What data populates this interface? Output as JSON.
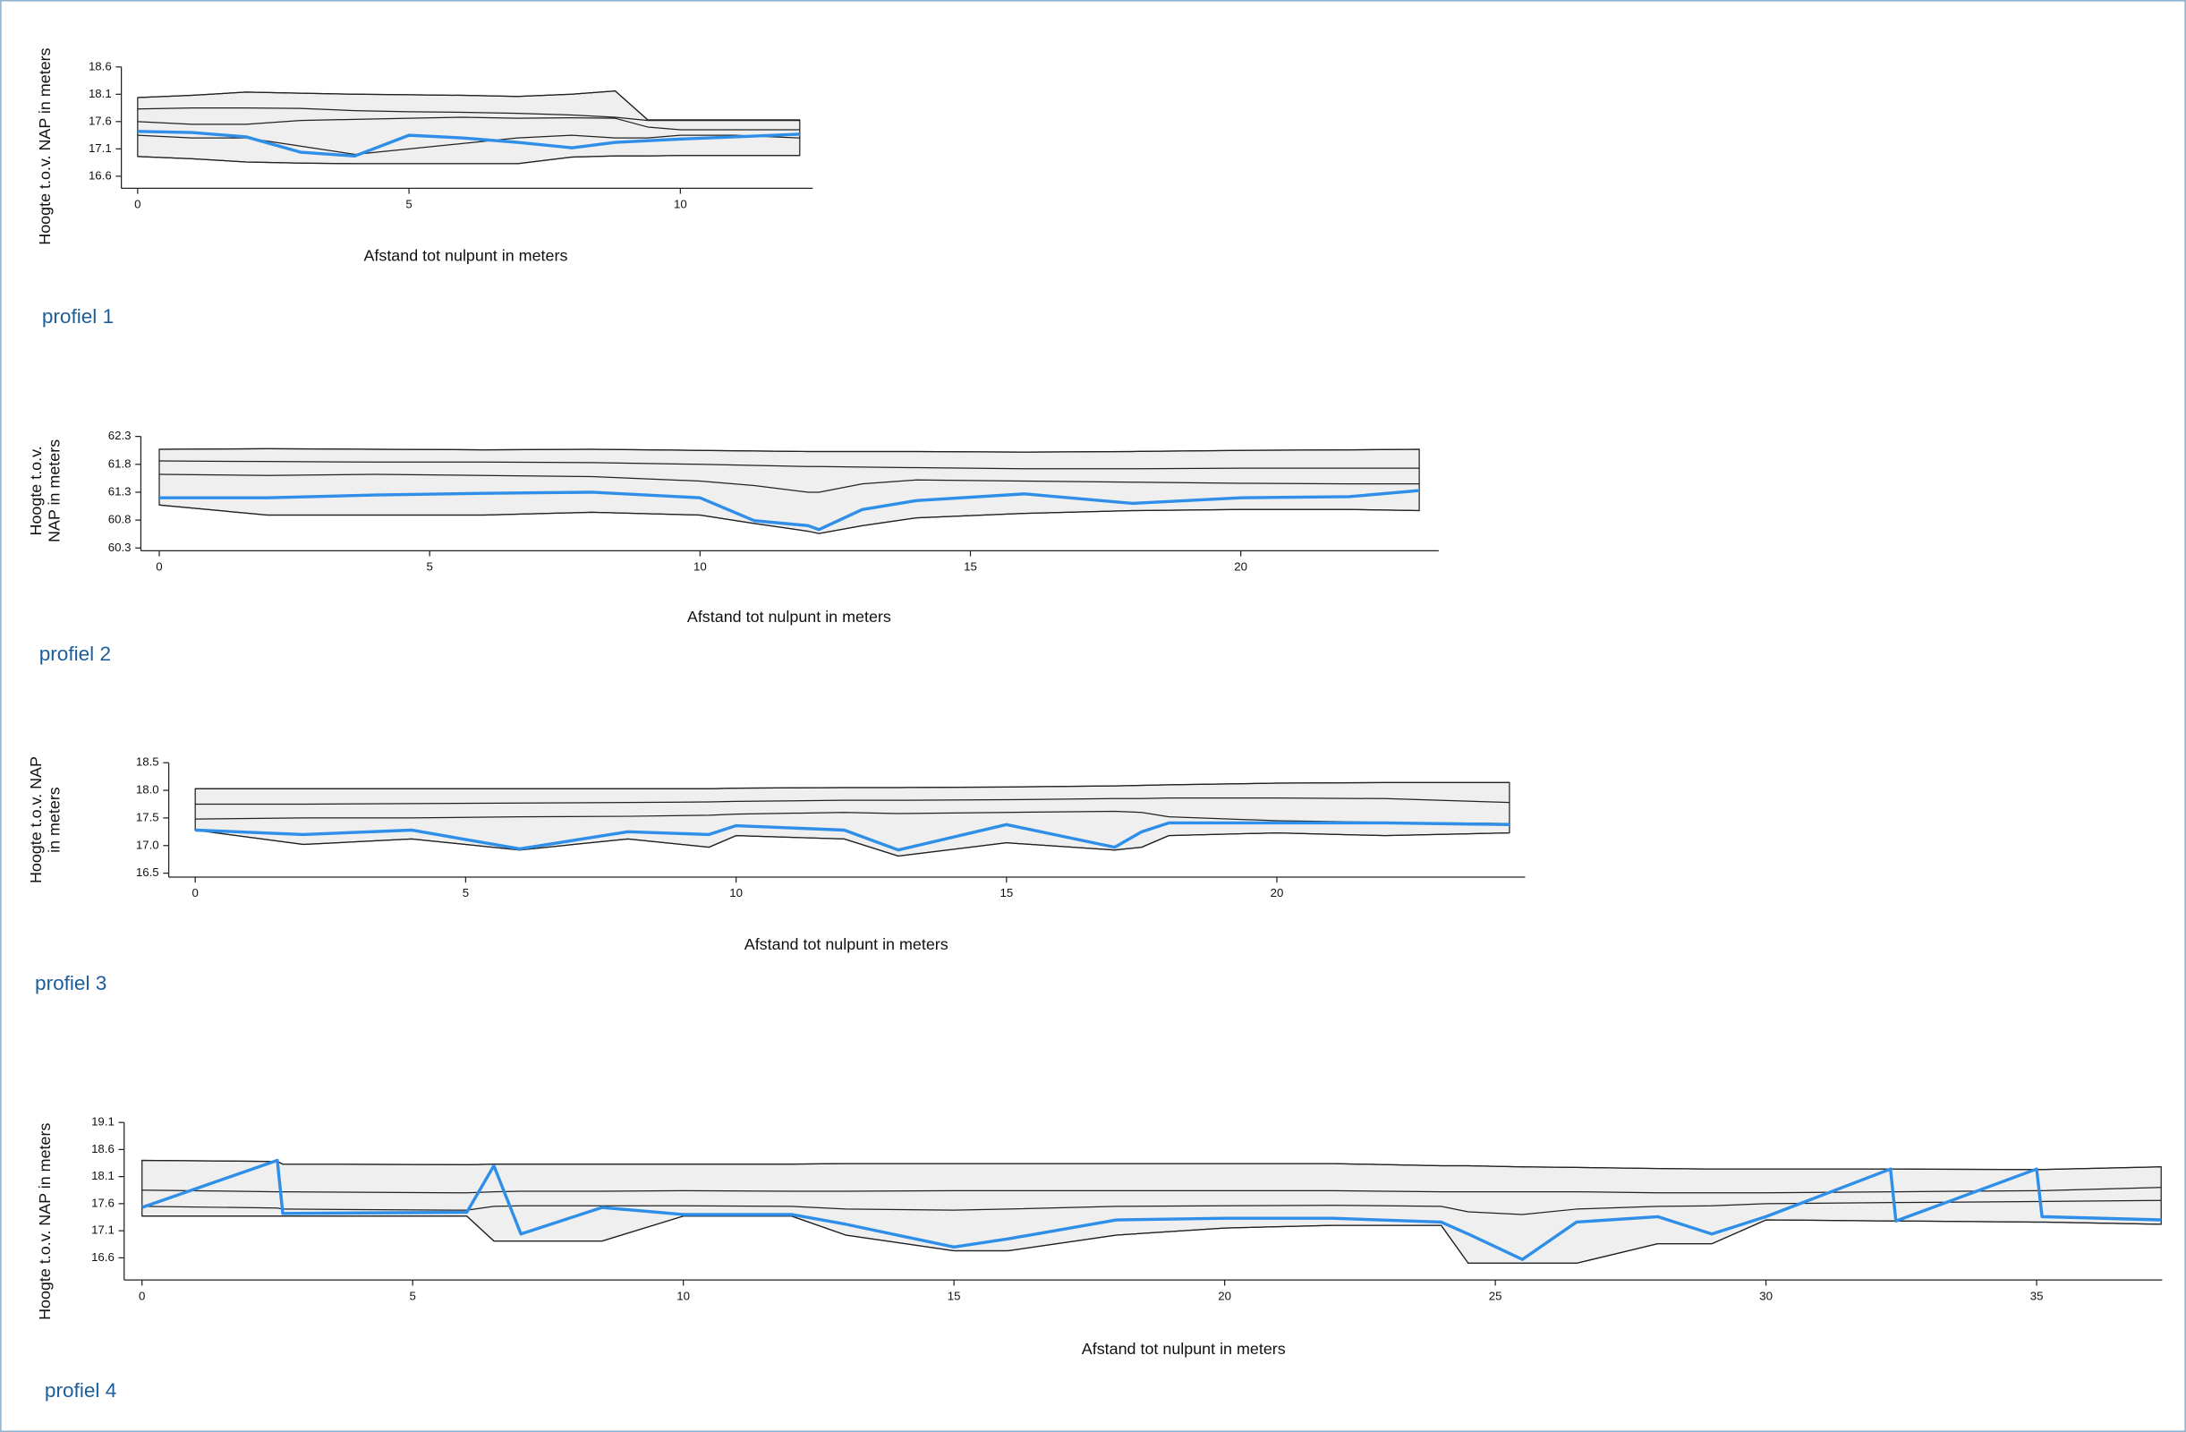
{
  "chart_data": [
    {
      "type": "profile",
      "caption": "profiel 1",
      "ylabel": [
        "Hoogte t.o.v. NAP in meters"
      ],
      "xlabel": "Afstand tot nulpunt in meters",
      "x": [
        0,
        1,
        2,
        3,
        4,
        5,
        6,
        7,
        8,
        8.8,
        9.4,
        10,
        11,
        12.2
      ],
      "xlim": [
        -0.3,
        12.44
      ],
      "xticks": [
        0,
        5,
        10
      ],
      "ylim": [
        16.38,
        18.6
      ],
      "yticks": [
        16.6,
        17.1,
        17.6,
        18.1,
        18.6
      ],
      "fill": "#efefef",
      "series": [
        {
          "color": "#222222",
          "values": [
            18.04,
            18.08,
            18.14,
            18.12,
            18.1,
            18.09,
            18.08,
            18.06,
            18.1,
            18.16,
            17.63,
            17.63,
            17.63,
            17.63
          ]
        },
        {
          "color": "#222222",
          "values": [
            16.96,
            16.92,
            16.86,
            16.84,
            16.83,
            16.83,
            16.83,
            16.83,
            16.95,
            16.97,
            16.97,
            16.98,
            16.98,
            16.98
          ]
        },
        {
          "color": "#222222",
          "values": [
            17.83,
            17.85,
            17.85,
            17.84,
            17.8,
            17.78,
            17.77,
            17.75,
            17.72,
            17.68,
            17.62,
            17.62,
            17.62,
            17.62
          ]
        },
        {
          "color": "#222222",
          "values": [
            17.6,
            17.55,
            17.55,
            17.62,
            17.64,
            17.66,
            17.68,
            17.66,
            17.67,
            17.66,
            17.5,
            17.45,
            17.45,
            17.45
          ]
        },
        {
          "color": "#222222",
          "values": [
            17.35,
            17.3,
            17.3,
            17.15,
            17.0,
            17.1,
            17.2,
            17.3,
            17.35,
            17.3,
            17.3,
            17.35,
            17.35,
            17.3
          ]
        },
        {
          "color": "#2f8fe8",
          "values": [
            17.42,
            17.4,
            17.32,
            17.04,
            16.97,
            17.35,
            17.3,
            17.22,
            17.12,
            17.22,
            17.25,
            17.28,
            17.32,
            17.37
          ]
        }
      ]
    },
    {
      "type": "profile",
      "caption": "profiel 2",
      "ylabel": [
        "Hoogte t.o.v.",
        "NAP in meters"
      ],
      "xlabel": "Afstand tot nulpunt in meters",
      "x": [
        0,
        2,
        4,
        6,
        8,
        10,
        11,
        12,
        12.2,
        13,
        14,
        16,
        18,
        20,
        22,
        23.3
      ],
      "xlim": [
        -0.34,
        23.66
      ],
      "xticks": [
        0,
        5,
        10,
        15,
        20
      ],
      "ylim": [
        60.25,
        62.3
      ],
      "yticks": [
        60.3,
        60.8,
        61.3,
        61.8,
        62.3
      ],
      "fill": "#efefef",
      "series": [
        {
          "color": "#222222",
          "values": [
            62.07,
            62.08,
            62.07,
            62.06,
            62.07,
            62.05,
            62.04,
            62.03,
            62.03,
            62.03,
            62.03,
            62.02,
            62.03,
            62.05,
            62.06,
            62.07
          ]
        },
        {
          "color": "#222222",
          "values": [
            61.07,
            60.89,
            60.89,
            60.89,
            60.94,
            60.89,
            60.74,
            60.6,
            60.56,
            60.7,
            60.84,
            60.92,
            60.97,
            60.99,
            60.99,
            60.97
          ]
        },
        {
          "color": "#222222",
          "values": [
            61.86,
            61.85,
            61.84,
            61.84,
            61.83,
            61.8,
            61.78,
            61.76,
            61.76,
            61.75,
            61.74,
            61.72,
            61.72,
            61.73,
            61.73,
            61.73
          ]
        },
        {
          "color": "#222222",
          "values": [
            61.62,
            61.6,
            61.62,
            61.6,
            61.58,
            61.5,
            61.42,
            61.3,
            61.3,
            61.45,
            61.52,
            61.5,
            61.48,
            61.46,
            61.45,
            61.45
          ]
        },
        {
          "color": "#2f8fe8",
          "values": [
            61.2,
            61.2,
            61.25,
            61.28,
            61.3,
            61.2,
            60.79,
            60.7,
            60.63,
            60.99,
            61.15,
            61.27,
            61.1,
            61.2,
            61.22,
            61.33
          ]
        }
      ]
    },
    {
      "type": "profile",
      "caption": "profiel 3",
      "ylabel": [
        "Hoogte t.o.v. NAP",
        "in meters"
      ],
      "xlabel": "Afstand tot nulpunt in meters",
      "x": [
        0,
        2,
        4,
        6,
        8,
        9.5,
        10,
        12,
        13,
        15,
        17,
        17.5,
        18,
        20,
        22,
        24.3
      ],
      "xlim": [
        -0.49,
        24.59
      ],
      "xticks": [
        0,
        5,
        10,
        15,
        20
      ],
      "ylim": [
        16.43,
        18.5
      ],
      "yticks": [
        16.5,
        {
          "value": 17,
          "label": "17.0"
        },
        17.5,
        {
          "value": 18,
          "label": "18.0"
        },
        18.5
      ],
      "fill": "#efefef",
      "series": [
        {
          "color": "#222222",
          "values": [
            18.03,
            18.03,
            18.03,
            18.03,
            18.03,
            18.03,
            18.04,
            18.05,
            18.05,
            18.06,
            18.08,
            18.09,
            18.1,
            18.13,
            18.14,
            18.14
          ]
        },
        {
          "color": "#222222",
          "values": [
            17.28,
            17.02,
            17.12,
            16.92,
            17.12,
            16.97,
            17.18,
            17.12,
            16.81,
            17.05,
            16.92,
            16.97,
            17.18,
            17.23,
            17.18,
            17.23
          ]
        },
        {
          "color": "#222222",
          "values": [
            17.75,
            17.75,
            17.76,
            17.77,
            17.78,
            17.79,
            17.8,
            17.82,
            17.82,
            17.83,
            17.85,
            17.85,
            17.86,
            17.86,
            17.85,
            17.78
          ]
        },
        {
          "color": "#222222",
          "values": [
            17.48,
            17.5,
            17.5,
            17.52,
            17.53,
            17.55,
            17.57,
            17.6,
            17.58,
            17.6,
            17.62,
            17.6,
            17.52,
            17.45,
            17.42,
            17.4
          ]
        },
        {
          "color": "#2f8fe8",
          "values": [
            17.28,
            17.2,
            17.28,
            16.94,
            17.25,
            17.2,
            17.36,
            17.28,
            16.92,
            17.38,
            16.97,
            17.25,
            17.41,
            17.41,
            17.41,
            17.38
          ]
        }
      ]
    },
    {
      "type": "profile",
      "caption": "profiel 4",
      "ylabel": [
        "Hoogte t.o.v. NAP in meters"
      ],
      "xlabel": "Afstand tot nulpunt in meters",
      "x": [
        0,
        2.5,
        2.6,
        6,
        6.5,
        7,
        8.5,
        10,
        12,
        13,
        15,
        16,
        18,
        20,
        22,
        24,
        24.5,
        25.5,
        26.5,
        28,
        29,
        30,
        32.3,
        32.4,
        35,
        35.1,
        37.3
      ],
      "xlim": [
        -0.33,
        37.32
      ],
      "xticks": [
        0,
        5,
        10,
        15,
        20,
        25,
        30,
        35
      ],
      "ylim": [
        16.19,
        19.1
      ],
      "yticks": [
        16.6,
        17.1,
        17.6,
        18.1,
        18.6,
        19.1
      ],
      "fill": "#efefef",
      "series": [
        {
          "color": "#222222",
          "values": [
            18.4,
            18.38,
            18.33,
            18.32,
            18.33,
            18.33,
            18.33,
            18.33,
            18.33,
            18.34,
            18.34,
            18.34,
            18.34,
            18.34,
            18.34,
            18.3,
            18.3,
            18.28,
            18.27,
            18.25,
            18.24,
            18.24,
            18.24,
            18.24,
            18.23,
            18.23,
            18.28
          ]
        },
        {
          "color": "#222222",
          "values": [
            17.37,
            17.37,
            17.37,
            17.37,
            16.91,
            16.91,
            16.91,
            17.37,
            17.37,
            17.02,
            16.73,
            16.73,
            17.02,
            17.15,
            17.2,
            17.2,
            16.5,
            16.5,
            16.5,
            16.86,
            16.86,
            17.3,
            17.28,
            17.28,
            17.26,
            17.26,
            17.22
          ]
        },
        {
          "color": "#222222",
          "values": [
            17.85,
            17.82,
            17.82,
            17.8,
            17.82,
            17.83,
            17.83,
            17.84,
            17.83,
            17.83,
            17.84,
            17.84,
            17.84,
            17.84,
            17.84,
            17.82,
            17.82,
            17.82,
            17.82,
            17.8,
            17.8,
            17.8,
            17.82,
            17.82,
            17.84,
            17.84,
            17.9
          ]
        },
        {
          "color": "#222222",
          "values": [
            17.55,
            17.52,
            17.5,
            17.48,
            17.55,
            17.56,
            17.56,
            17.56,
            17.55,
            17.5,
            17.48,
            17.5,
            17.55,
            17.56,
            17.57,
            17.55,
            17.45,
            17.4,
            17.5,
            17.55,
            17.56,
            17.6,
            17.62,
            17.62,
            17.64,
            17.64,
            17.66
          ]
        },
        {
          "color": "#2f8fe8",
          "values": [
            17.53,
            18.4,
            17.42,
            17.44,
            18.3,
            17.04,
            17.53,
            17.4,
            17.4,
            17.22,
            16.8,
            16.95,
            17.3,
            17.33,
            17.33,
            17.26,
            17.04,
            16.57,
            17.26,
            17.36,
            17.04,
            17.36,
            18.24,
            17.28,
            18.24,
            17.36,
            17.3
          ]
        }
      ]
    }
  ]
}
